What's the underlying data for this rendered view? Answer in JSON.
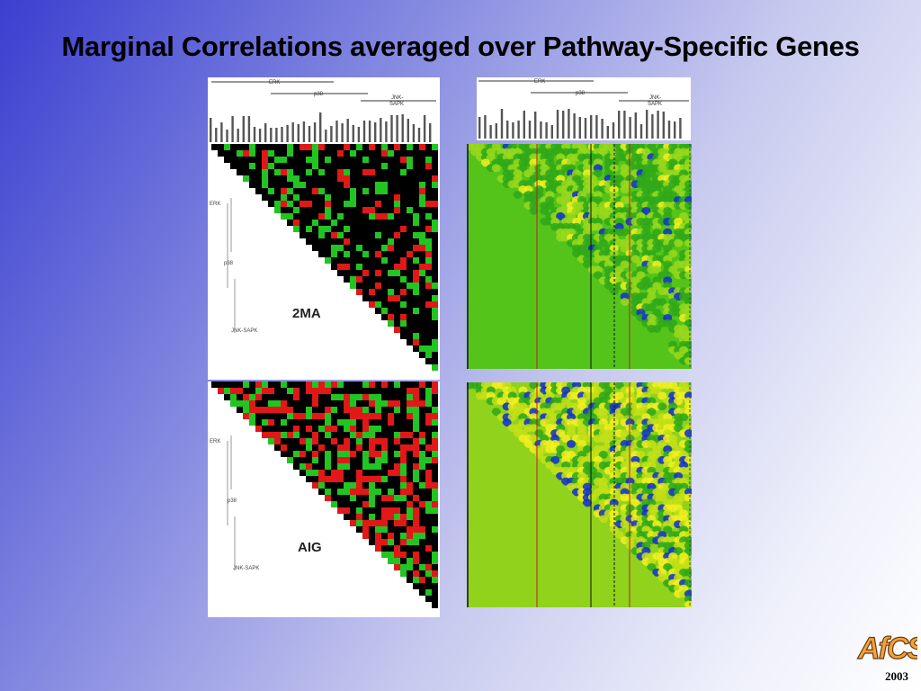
{
  "slide": {
    "title": "Marginal Correlations averaged over Pathway-Specific Genes",
    "year": "2003",
    "logo_text": "AfCS"
  },
  "pathways": {
    "erk": "ERK",
    "p38": "p38",
    "jnk": "JNK-",
    "sapk": "SAPK",
    "jnk_sapk": "JNK-SAPK"
  },
  "panels": {
    "top_left_label": "2MA",
    "bottom_left_label": "AIG"
  },
  "colors": {
    "red": "#e01818",
    "green": "#22c422",
    "black": "#000000",
    "heat_bg": "#54c41a",
    "heat_bg2": "#90d21c",
    "yellow": "#f4f020",
    "blue": "#1030d0"
  }
}
